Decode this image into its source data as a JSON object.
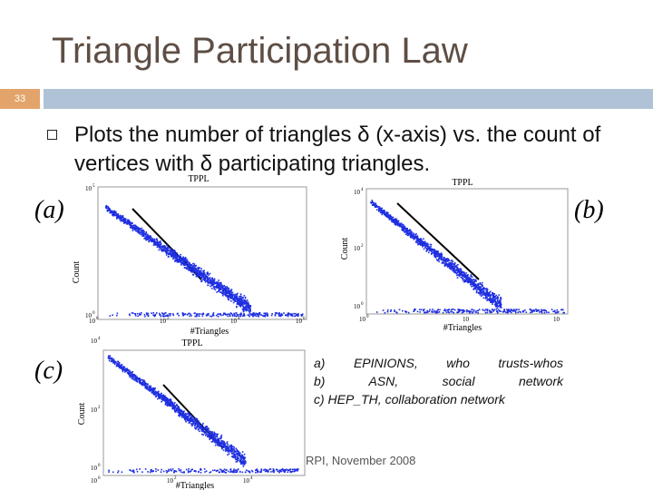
{
  "slide": {
    "title": "Triangle Participation Law",
    "page_number": "33",
    "bullet": "Plots the number of triangles δ (x-axis) vs. the count of vertices with δ participating triangles.",
    "caption_lines": [
      "a)  EPINIONS,  who  trusts-whos",
      "b)      ASN,      social      network",
      "c) HEP_TH, collaboration network"
    ],
    "footer": "RPI, November 2008",
    "colors": {
      "title": "#5e4e44",
      "accent_box": "#e3a46b",
      "title_bar": "#b0c3d6",
      "points": "#1e2fe0"
    }
  },
  "chart_data": [
    {
      "type": "scatter",
      "panel_label": "(a)",
      "title": "TPPL",
      "xlabel": "#Triangles",
      "ylabel": "Count",
      "log_scale": true,
      "x_ticks": [
        "10",
        "10",
        "10",
        "10"
      ],
      "x_tick_exponents": [
        "0",
        "2",
        "4",
        "6"
      ],
      "y_ticks": [
        "10",
        "10"
      ],
      "y_tick_exponents": [
        "0",
        "5"
      ],
      "xlim": [
        1,
        1000000
      ],
      "ylim": [
        1,
        100000
      ]
    },
    {
      "type": "scatter",
      "panel_label": "(b)",
      "title": "TPPL",
      "xlabel": "#Triangles",
      "ylabel": "Count",
      "log_scale": true,
      "x_ticks": [
        "10",
        "10",
        "10"
      ],
      "x_tick_exponents": [
        "0",
        "",
        ""
      ],
      "y_ticks": [
        "10",
        "10",
        "10"
      ],
      "y_tick_exponents": [
        "0",
        "2",
        "4"
      ],
      "xlim": [
        1,
        100000
      ],
      "ylim": [
        1,
        10000
      ]
    },
    {
      "type": "scatter",
      "panel_label": "(c)",
      "title": "TPPL",
      "xlabel": "#Triangles",
      "ylabel": "Count",
      "log_scale": true,
      "x_ticks": [
        "10",
        "10",
        "10"
      ],
      "x_tick_exponents": [
        "0",
        "2",
        "4"
      ],
      "y_ticks": [
        "10",
        "10",
        "10"
      ],
      "y_tick_exponents": [
        "0",
        "2",
        "4"
      ],
      "xlim": [
        1,
        100000
      ],
      "ylim": [
        1,
        10000
      ]
    }
  ]
}
